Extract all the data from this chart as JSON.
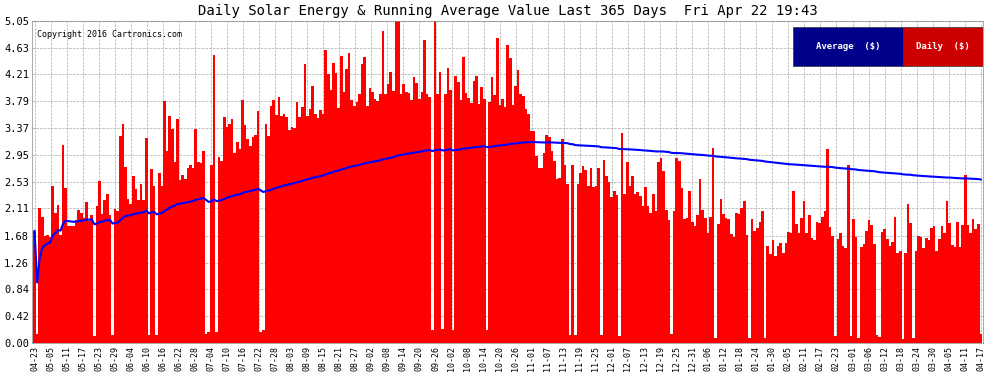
{
  "title": "Daily Solar Energy & Running Average Value Last 365 Days  Fri Apr 22 19:43",
  "copyright": "Copyright 2016 Cartronics.com",
  "bar_color": "#FF0000",
  "avg_color": "#0000FF",
  "bg_color": "#FFFFFF",
  "plot_bg_color": "#FFFFFF",
  "grid_color": "#AAAAAA",
  "ylim": [
    0.0,
    5.05
  ],
  "yticks": [
    0.0,
    0.42,
    0.84,
    1.26,
    1.68,
    2.11,
    2.53,
    2.95,
    3.37,
    3.79,
    4.21,
    4.63,
    5.05
  ],
  "legend_avg_color": "#00008B",
  "legend_daily_color": "#CC0000",
  "x_labels": [
    "04-23",
    "05-05",
    "05-11",
    "05-17",
    "05-23",
    "05-29",
    "06-04",
    "06-10",
    "06-16",
    "06-22",
    "06-28",
    "07-04",
    "07-10",
    "07-16",
    "07-22",
    "07-28",
    "08-03",
    "08-09",
    "08-15",
    "08-21",
    "08-27",
    "09-02",
    "09-08",
    "09-14",
    "09-20",
    "09-26",
    "10-02",
    "10-08",
    "10-14",
    "10-20",
    "10-26",
    "11-01",
    "11-07",
    "11-13",
    "11-19",
    "11-25",
    "12-01",
    "12-07",
    "12-13",
    "12-19",
    "12-25",
    "12-31",
    "01-06",
    "01-12",
    "01-18",
    "01-24",
    "01-30",
    "02-05",
    "02-11",
    "02-17",
    "02-23",
    "03-01",
    "03-06",
    "03-12",
    "03-18",
    "03-24",
    "03-30",
    "04-05",
    "04-11",
    "04-17"
  ]
}
